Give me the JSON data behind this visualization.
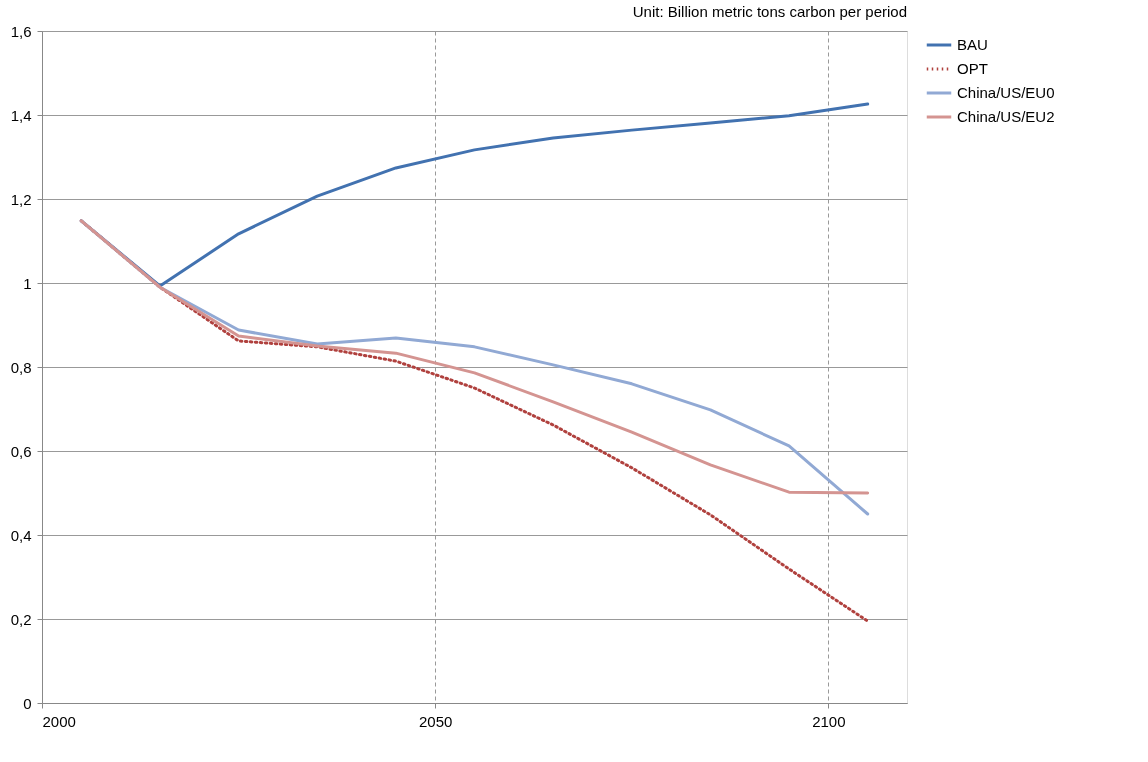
{
  "chart_data": {
    "type": "line",
    "annotations": [
      "Unit: Billion metric tons carbon per period"
    ],
    "x": [
      2005,
      2015,
      2025,
      2035,
      2045,
      2055,
      2065,
      2075,
      2085,
      2095,
      2105
    ],
    "xlim": [
      2000,
      2110
    ],
    "xticks": [
      2000,
      2050,
      2100
    ],
    "ylim": [
      0,
      1.6
    ],
    "yticks": [
      0,
      {
        "value": 0.2,
        "label": "0,2"
      },
      {
        "value": 0.4,
        "label": "0,4"
      },
      {
        "value": 0.6,
        "label": "0,6"
      },
      {
        "value": 0.8,
        "label": "0,8"
      },
      1,
      {
        "value": 1.2,
        "label": "1,2"
      },
      {
        "value": 1.4,
        "label": "1,4"
      },
      {
        "value": 1.6,
        "label": "1,6"
      }
    ],
    "grid": true,
    "legend": "right",
    "series": [
      {
        "name": "BAU",
        "color": "#4272b0",
        "line_style": "solid",
        "values": [
          1.148,
          0.993,
          1.117,
          1.207,
          1.274,
          1.317,
          1.345,
          1.364,
          1.381,
          1.398,
          1.426
        ]
      },
      {
        "name": "OPT",
        "color": "#b0413e",
        "line_style": "dotted",
        "values": [
          1.148,
          0.99,
          0.862,
          0.848,
          0.814,
          0.75,
          0.662,
          0.56,
          0.448,
          0.319,
          0.195
        ]
      },
      {
        "name": "China/US/EU0",
        "color": "#91a9d4",
        "line_style": "solid",
        "values": [
          1.148,
          0.99,
          0.888,
          0.855,
          0.869,
          0.848,
          0.805,
          0.76,
          0.698,
          0.612,
          0.45
        ]
      },
      {
        "name": "China/US/EU2",
        "color": "#d49491",
        "line_style": "solid",
        "values": [
          1.148,
          0.99,
          0.874,
          0.85,
          0.833,
          0.786,
          0.717,
          0.645,
          0.567,
          0.502,
          0.5
        ]
      }
    ]
  }
}
